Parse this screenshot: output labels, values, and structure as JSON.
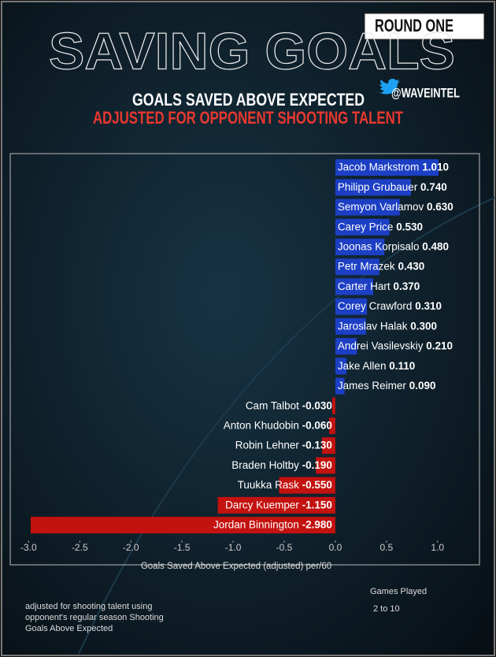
{
  "chart_data": {
    "type": "bar",
    "orientation": "horizontal",
    "title": "SAVING GOALS",
    "subtitle": "GOALS SAVED ABOVE EXPECTED",
    "subtitle2": "ADJUSTED FOR OPPONENT SHOOTING TALENT",
    "handle": "@WAVEINTEL",
    "badge": "ROUND ONE",
    "x_label": "Goals Saved Above Expected (adjusted) per/60",
    "note": [
      "adjusted for shooting talent using",
      "opponent's regular season Shooting",
      "Goals Above Expected"
    ],
    "legend_title": "Games Played",
    "legend_range": "2 to 10",
    "categories": [
      "Jacob Markstrom",
      "Philipp Grubauer",
      "Semyon Varlamov",
      "Carey Price",
      "Joonas Korpisalo",
      "Petr Mrazek",
      "Carter Hart",
      "Corey Crawford",
      "Jaroslav Halak",
      "Andrei Vasilevskiy",
      "Jake Allen",
      "James Reimer",
      "Cam Talbot",
      "Anton Khudobin",
      "Robin Lehner",
      "Braden Holtby",
      "Tuukka Rask",
      "Darcy Kuemper",
      "Jordan Binnington"
    ],
    "values": [
      1.01,
      0.74,
      0.63,
      0.53,
      0.48,
      0.43,
      0.37,
      0.31,
      0.3,
      0.21,
      0.11,
      0.09,
      -0.03,
      -0.06,
      -0.13,
      -0.19,
      -0.55,
      -1.15,
      -2.98
    ],
    "value_labels": [
      "1.010",
      "0.740",
      "0.630",
      "0.530",
      "0.480",
      "0.430",
      "0.370",
      "0.310",
      "0.300",
      "0.210",
      "0.110",
      "0.090",
      "-0.030",
      "-0.060",
      "-0.130",
      "-0.190",
      "-0.550",
      "-1.150",
      "-2.980"
    ],
    "color_positive": "#1c3fc4",
    "color_negative": "#c3120f",
    "xlim": [
      -3.18,
      1.41
    ],
    "xticks": [
      {
        "value": -3,
        "label": "-3.0"
      },
      {
        "value": -2.5,
        "label": "-2.5"
      },
      {
        "value": -2,
        "label": "-2.0"
      },
      {
        "value": -1.5,
        "label": "-1.5"
      },
      {
        "value": -1,
        "label": "-1.0"
      },
      {
        "value": -0.5,
        "label": "-0.5"
      },
      {
        "value": 0,
        "label": "0.0"
      },
      0.5,
      {
        "value": 1,
        "label": "1.0"
      }
    ]
  }
}
